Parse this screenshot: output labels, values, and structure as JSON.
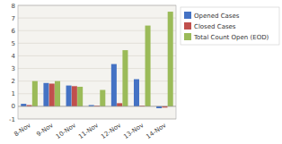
{
  "chart_data": {
    "type": "bar",
    "categories": [
      "8-Nov",
      "9-Nov",
      "10-Nov",
      "11-Nov",
      "12-Nov",
      "13-Nov",
      "14-Nov"
    ],
    "series": [
      {
        "name": "Opened Cases",
        "color": "#4472C4",
        "values": [
          0.2,
          1.85,
          1.65,
          0.1,
          3.35,
          2.15,
          -0.15
        ]
      },
      {
        "name": "Closed Cases",
        "color": "#C0504D",
        "values": [
          0.1,
          1.8,
          1.6,
          0.05,
          0.25,
          0.05,
          -0.1
        ]
      },
      {
        "name": "Total Count Open (EOD)",
        "color": "#9BBB59",
        "values": [
          2.0,
          2.0,
          1.55,
          1.3,
          4.45,
          6.4,
          7.5
        ]
      }
    ],
    "ylim": [
      -1,
      8
    ],
    "yticks": [
      -1,
      0,
      1,
      2,
      3,
      4,
      5,
      6,
      7,
      8
    ],
    "grid": true,
    "legend": "right"
  }
}
